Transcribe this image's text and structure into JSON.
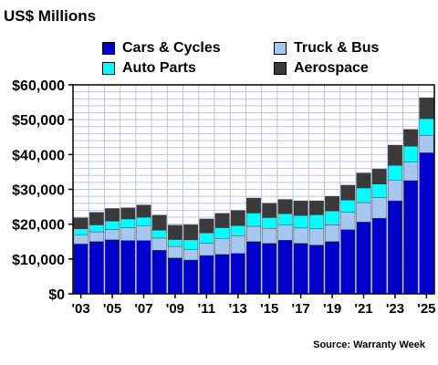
{
  "chart_data": {
    "type": "bar",
    "stacked": true,
    "title": "US$ Millions",
    "source": "Source: Warranty Week",
    "ylim": [
      0,
      60000
    ],
    "yticks": [
      "$0",
      "$10,000",
      "$20,000",
      "$30,000",
      "$40,000",
      "$50,000",
      "$60,000"
    ],
    "ytick_values": [
      0,
      10000,
      20000,
      30000,
      40000,
      50000,
      60000
    ],
    "xtick_labels": [
      "'03",
      "'05",
      "'07",
      "'09",
      "'11",
      "'13",
      "'15",
      "'17",
      "'19",
      "'21",
      "'23",
      "'25"
    ],
    "categories": [
      "2003",
      "2004",
      "2005",
      "2006",
      "2007",
      "2008",
      "2009",
      "2010",
      "2011",
      "2012",
      "2013",
      "2014",
      "2015",
      "2016",
      "2017",
      "2018",
      "2019",
      "2020",
      "2021",
      "2022",
      "2023",
      "2024",
      "2025"
    ],
    "grid": true,
    "legend_position": "top",
    "series": [
      {
        "name": "Cars & Cycles",
        "color": "#0000cc",
        "values": [
          14300,
          15000,
          15500,
          15300,
          15300,
          12500,
          10300,
          9700,
          11000,
          11300,
          11600,
          15000,
          14500,
          15400,
          14500,
          14000,
          15000,
          18400,
          20600,
          21700,
          26700,
          32500,
          40500
        ]
      },
      {
        "name": "Truck & Bus",
        "color": "#a6c8f0",
        "values": [
          2700,
          2800,
          3000,
          3700,
          4300,
          3500,
          3300,
          3100,
          3500,
          4600,
          5100,
          4400,
          4300,
          4300,
          4400,
          4700,
          4800,
          5000,
          5600,
          5900,
          6000,
          5300,
          5000
        ]
      },
      {
        "name": "Auto Parts",
        "color": "#00ffff",
        "values": [
          1700,
          2000,
          2400,
          2500,
          2400,
          2300,
          2000,
          2700,
          3000,
          3100,
          2900,
          3800,
          3100,
          3300,
          3600,
          4000,
          4000,
          3500,
          4200,
          3900,
          4200,
          4600,
          4800
        ]
      },
      {
        "name": "Aerospace",
        "color": "#3a3a3a",
        "values": [
          3100,
          3600,
          3600,
          3200,
          3500,
          4300,
          4100,
          4300,
          4000,
          4100,
          4300,
          4300,
          4100,
          4100,
          4200,
          4000,
          4200,
          4300,
          4300,
          4300,
          5800,
          4800,
          6000
        ]
      }
    ]
  }
}
